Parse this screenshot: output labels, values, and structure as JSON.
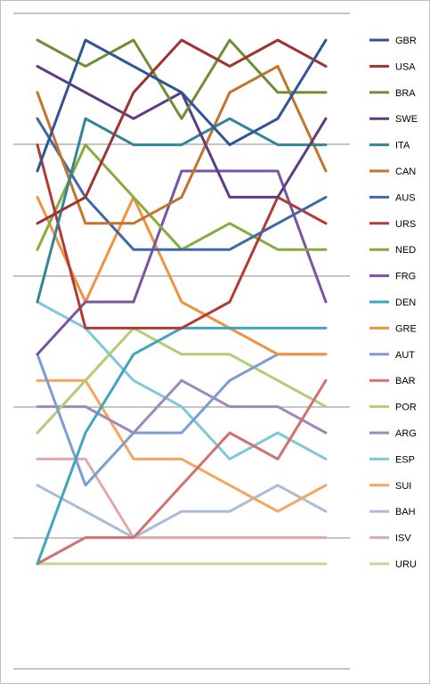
{
  "chart_data": {
    "type": "line",
    "title": "",
    "xlabel": "",
    "ylabel": "",
    "x": [
      1,
      2,
      3,
      4,
      5,
      6,
      7
    ],
    "ylim": [
      0,
      20
    ],
    "grid": true,
    "legend_position": "right",
    "series": [
      {
        "name": "GBR",
        "color": "#2f5597",
        "values": [
          15,
          20,
          19,
          18,
          16,
          17,
          20
        ]
      },
      {
        "name": "USA",
        "color": "#9e3431",
        "values": [
          13,
          14,
          18,
          20,
          19,
          20,
          19
        ]
      },
      {
        "name": "BRA",
        "color": "#6e8f36",
        "values": [
          20,
          19,
          20,
          17,
          20,
          18,
          18
        ]
      },
      {
        "name": "SWE",
        "color": "#5f3b83",
        "values": [
          19,
          18,
          17,
          18,
          14,
          14,
          17
        ]
      },
      {
        "name": "ITA",
        "color": "#31859b",
        "values": [
          10,
          17,
          16,
          16,
          17,
          16,
          16
        ]
      },
      {
        "name": "CAN",
        "color": "#c5732a",
        "values": [
          18,
          13,
          13,
          14,
          18,
          19,
          15
        ]
      },
      {
        "name": "AUS",
        "color": "#3d6aa6",
        "values": [
          17,
          14,
          12,
          12,
          12,
          13,
          14
        ]
      },
      {
        "name": "URS",
        "color": "#b23b37",
        "values": [
          16,
          9,
          9,
          9,
          10,
          14,
          13
        ]
      },
      {
        "name": "NED",
        "color": "#86ac3c",
        "values": [
          12,
          16,
          14,
          12,
          13,
          12,
          12
        ]
      },
      {
        "name": "FRG",
        "color": "#7a54a3",
        "values": [
          8,
          10,
          10,
          15,
          15,
          15,
          10
        ]
      },
      {
        "name": "DEN",
        "color": "#3ea7be",
        "values": [
          0,
          5,
          8,
          9,
          9,
          9,
          9
        ]
      },
      {
        "name": "GRE",
        "color": "#f0923e",
        "values": [
          14,
          10,
          14,
          10,
          9,
          8,
          8
        ]
      },
      {
        "name": "AUT",
        "color": "#7b9dcf",
        "values": [
          8,
          3,
          5,
          5,
          7,
          8,
          8
        ]
      },
      {
        "name": "BAR",
        "color": "#d2716e",
        "values": [
          0,
          1,
          1,
          3,
          5,
          4,
          7
        ]
      },
      {
        "name": "POR",
        "color": "#b3cc77",
        "values": [
          5,
          7,
          9,
          8,
          8,
          7,
          6
        ]
      },
      {
        "name": "ARG",
        "color": "#9e89b9",
        "values": [
          6,
          6,
          5,
          7,
          6,
          6,
          5
        ]
      },
      {
        "name": "ESP",
        "color": "#7ec8d9",
        "values": [
          10,
          9,
          7,
          6,
          4,
          5,
          4
        ]
      },
      {
        "name": "SUI",
        "color": "#f7a45c",
        "values": [
          7,
          7,
          4,
          4,
          3,
          2,
          3
        ]
      },
      {
        "name": "BAH",
        "color": "#a9bcd8",
        "values": [
          3,
          2,
          1,
          2,
          2,
          3,
          2
        ]
      },
      {
        "name": "ISV",
        "color": "#e0a9a8",
        "values": [
          4,
          4,
          1,
          1,
          1,
          1,
          1
        ]
      },
      {
        "name": "URU",
        "color": "#c3d69b",
        "values": [
          0,
          0,
          0,
          0,
          0,
          0,
          0
        ]
      }
    ]
  }
}
